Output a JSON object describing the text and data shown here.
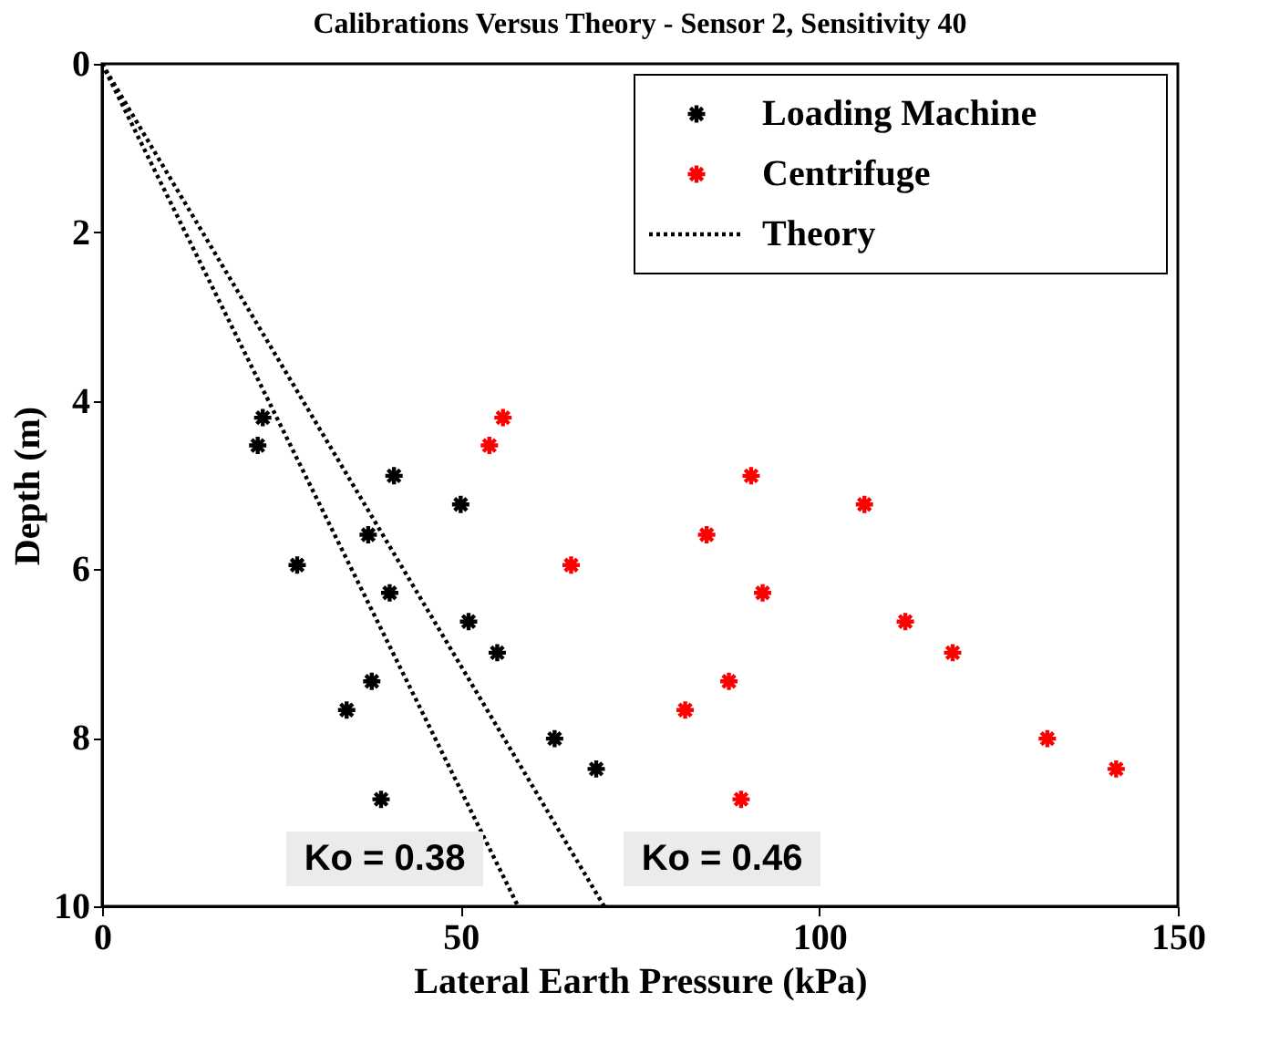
{
  "chart_data": {
    "type": "scatter",
    "title": "Calibrations Versus Theory - Sensor 2, Sensitivity 40",
    "xlabel": "Lateral Earth Pressure (kPa)",
    "ylabel": "Depth (m)",
    "xlim": [
      0,
      150
    ],
    "xticks": [
      0,
      50,
      100,
      150
    ],
    "ylim": [
      10,
      0
    ],
    "yticks": [
      0,
      2,
      4,
      6,
      8,
      10
    ],
    "grid": false,
    "legend": "top right",
    "series": [
      {
        "name": "Loading Machine",
        "marker": "cross",
        "color": "#000000",
        "x": [
          22.4,
          21.7,
          40.7,
          50.0,
          37.1,
          27.2,
          40.1,
          51.1,
          55.1,
          37.6,
          34.1,
          63.1,
          68.9,
          38.9
        ],
        "values": [
          4.2,
          4.53,
          4.89,
          5.23,
          5.59,
          5.95,
          6.28,
          6.62,
          6.99,
          7.33,
          7.67,
          8.01,
          8.37,
          8.73
        ]
      },
      {
        "name": "Centrifuge",
        "marker": "cross",
        "color": "#ff0000",
        "x": [
          55.9,
          54.0,
          90.5,
          106.3,
          84.3,
          65.4,
          92.1,
          112.0,
          118.6,
          87.4,
          81.3,
          131.8,
          141.4,
          89.1
        ],
        "values": [
          4.2,
          4.53,
          4.89,
          5.23,
          5.59,
          5.95,
          6.28,
          6.62,
          6.99,
          7.33,
          7.67,
          8.01,
          8.37,
          8.73
        ]
      },
      {
        "name": "Theory",
        "type": "line",
        "color": "#000000",
        "line_style": "dotted",
        "x": [
          0,
          58
        ],
        "values": [
          0,
          10
        ]
      },
      {
        "type": "line",
        "color": "#000000",
        "line_style": "dotted",
        "x": [
          0,
          70
        ],
        "values": [
          0,
          10
        ]
      }
    ],
    "annotations": [
      "Ko = 0.38",
      "Ko = 0.46"
    ]
  }
}
